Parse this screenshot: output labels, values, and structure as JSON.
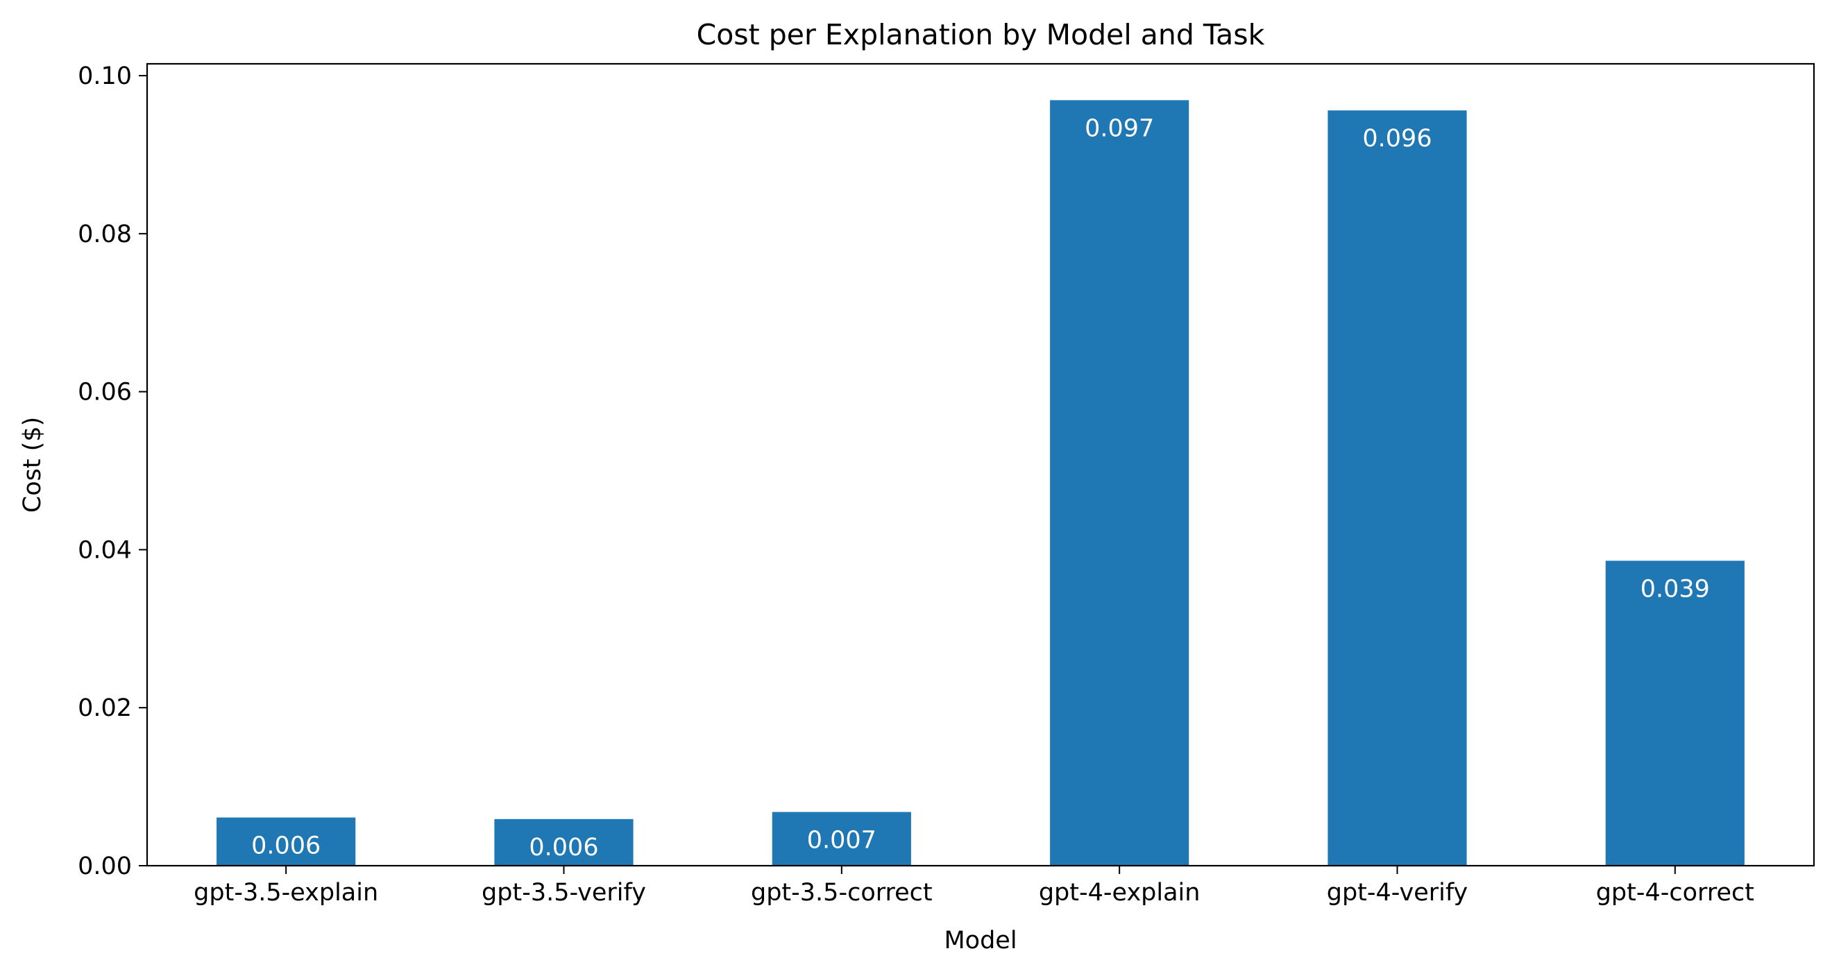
{
  "chart_data": {
    "type": "bar",
    "title": "Cost per Explanation by Model and Task",
    "xlabel": "Model",
    "ylabel": "Cost ($)",
    "categories": [
      "gpt-3.5-explain",
      "gpt-3.5-verify",
      "gpt-3.5-correct",
      "gpt-4-explain",
      "gpt-4-verify",
      "gpt-4-correct"
    ],
    "values": [
      0.0061,
      0.0059,
      0.0068,
      0.0969,
      0.0956,
      0.0386
    ],
    "value_labels": [
      "0.006",
      "0.006",
      "0.007",
      "0.097",
      "0.096",
      "0.039"
    ],
    "ylim": [
      0,
      0.1015
    ],
    "yticks": [
      0.0,
      0.02,
      0.04,
      0.06,
      0.08,
      0.1
    ],
    "ytick_labels": [
      "0.00",
      "0.02",
      "0.04",
      "0.06",
      "0.08",
      "0.10"
    ],
    "bar_color": "#1f77b4",
    "label_color": "#ffffff",
    "grid": false,
    "legend": "none"
  }
}
